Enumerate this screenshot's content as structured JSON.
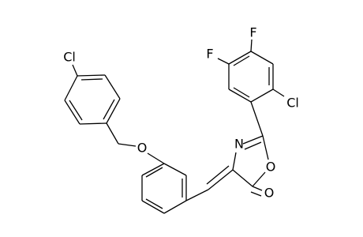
{
  "molecule": {
    "atoms": [
      {
        "label": "Cl"
      },
      {
        "label": "O"
      },
      {
        "label": "N"
      },
      {
        "label": "O"
      },
      {
        "label": "O"
      },
      {
        "label": "F"
      },
      {
        "label": "F"
      },
      {
        "label": "Cl"
      }
    ]
  }
}
